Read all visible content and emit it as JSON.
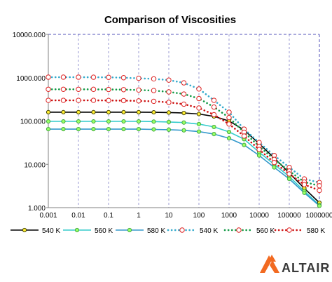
{
  "chart_data": {
    "type": "line",
    "title": "Comparison of Viscosities",
    "xlabel": "",
    "ylabel": "",
    "x_scale": "log",
    "y_scale": "log",
    "xlim": [
      0.001,
      1000000
    ],
    "ylim": [
      1,
      10000
    ],
    "x_tick_labels": [
      "0.001",
      "0.01",
      "0.1",
      "1",
      "10",
      "100",
      "1000",
      "10000",
      "100000",
      "1000000"
    ],
    "y_tick_labels": [
      "1.000",
      "10.000",
      "100.000",
      "1000.000",
      "10000.000"
    ],
    "grid": "vertical dashed gridlines",
    "legend_position": "bottom",
    "x": [
      0.001,
      0.00316,
      0.01,
      0.0316,
      0.1,
      0.316,
      1,
      3.16,
      10,
      31.6,
      100,
      316,
      1000,
      3162,
      10000,
      31623,
      100000,
      316228,
      1000000
    ],
    "series": [
      {
        "name": "540 K",
        "color": "#000000",
        "line_style": "solid",
        "marker": "yellow-filled circle",
        "values": [
          160,
          160,
          160,
          160,
          160,
          160,
          160,
          159,
          157,
          153,
          145,
          128,
          100,
          62,
          30,
          14,
          6.3,
          2.8,
          1.3
        ]
      },
      {
        "name": "560 K",
        "color": "#33cccc",
        "line_style": "solid",
        "marker": "light green circle",
        "values": [
          98,
          98,
          98,
          98,
          98,
          98,
          98,
          97,
          95,
          92,
          85,
          73,
          56,
          38,
          19,
          10,
          5.2,
          2.4,
          1.15
        ]
      },
      {
        "name": "580 K",
        "color": "#3399cc",
        "line_style": "solid",
        "marker": "light green circle",
        "values": [
          65,
          65,
          65,
          65,
          65,
          65,
          65,
          64,
          63,
          61,
          57,
          50,
          40,
          28,
          16,
          8.5,
          4.6,
          2.2,
          1.1
        ]
      },
      {
        "name": "540 K",
        "color": "#33aacc",
        "line_style": "dotted",
        "marker": "red open circle",
        "values": [
          1030,
          1030,
          1030,
          1025,
          1020,
          1000,
          970,
          940,
          880,
          760,
          550,
          300,
          160,
          65,
          32,
          16,
          8.5,
          4.6,
          3.8
        ]
      },
      {
        "name": "560 K",
        "color": "#119944",
        "line_style": "dotted",
        "marker": "red open circle",
        "values": [
          540,
          540,
          540,
          538,
          535,
          530,
          520,
          505,
          470,
          420,
          330,
          210,
          120,
          55,
          26,
          13,
          7,
          3.9,
          3.2
        ]
      },
      {
        "name": "580 K",
        "color": "#cc1111",
        "line_style": "dotted",
        "marker": "red open circle",
        "values": [
          300,
          300,
          300,
          300,
          298,
          296,
          292,
          285,
          270,
          245,
          200,
          140,
          85,
          45,
          22,
          11,
          6,
          3.4,
          2.5
        ]
      }
    ]
  },
  "brand": {
    "logo_text": "ALTAIR",
    "logo_color": "#f26a21"
  }
}
